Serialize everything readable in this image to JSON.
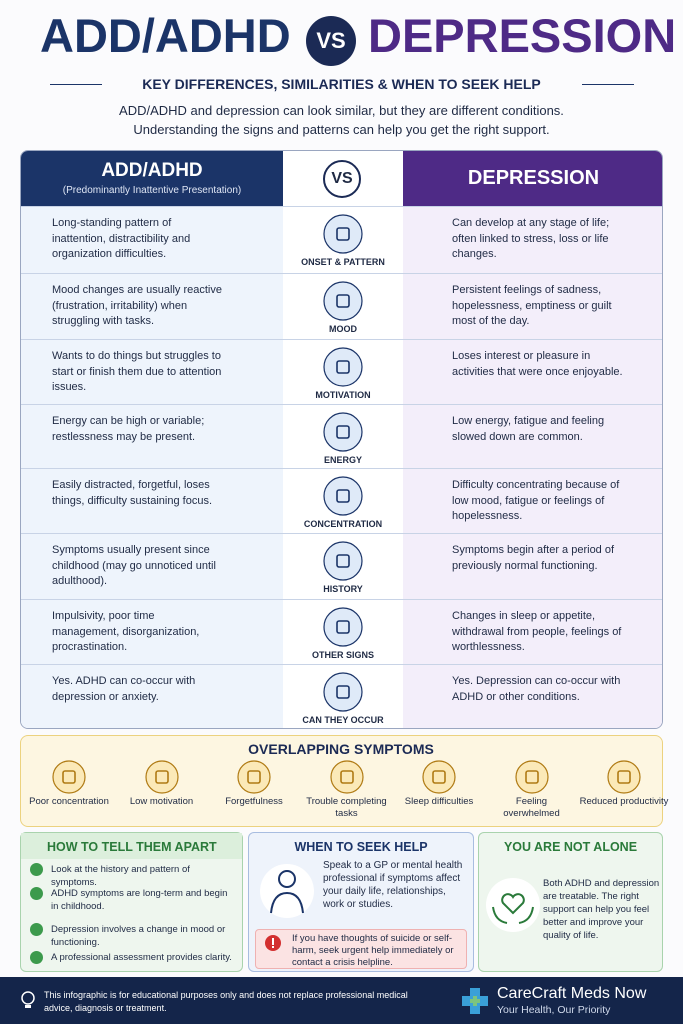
{
  "header": {
    "title_left": "ADD/ADHD",
    "vs": "VS",
    "title_right": "DEPRESSION",
    "subtitle": "KEY DIFFERENCES, SIMILARITIES & WHEN TO SEEK HELP",
    "intro": [
      "ADD/ADHD and depression can look similar, but they are different conditions.",
      "Understanding the signs and patterns can help you get the right support."
    ]
  },
  "table": {
    "left_title": "ADD/ADHD",
    "left_subtitle": "(Predominantly Inattentive Presentation)",
    "middle": "VS",
    "right_title": "DEPRESSION",
    "rows": [
      {
        "topic": "ONSET & PATTERN",
        "adhd": "Long-standing pattern of inattention, distractibility and organization difficulties.",
        "depression": "Can develop at any stage of life; often linked to stress, loss or life changes."
      },
      {
        "topic": "MOOD",
        "adhd": "Mood changes are usually reactive (frustration, irritability) when struggling with tasks.",
        "depression": "Persistent feelings of sadness, hopelessness, emptiness or guilt most of the day."
      },
      {
        "topic": "MOTIVATION",
        "adhd": "Wants to do things but struggles to start or finish them due to attention issues.",
        "depression": "Loses interest or pleasure in activities that were once enjoyable."
      },
      {
        "topic": "ENERGY",
        "adhd": "Energy can be high or variable; restlessness may be present.",
        "depression": "Low energy, fatigue and feeling slowed down are common."
      },
      {
        "topic": "CONCENTRATION",
        "adhd": "Easily distracted, forgetful, loses things, difficulty sustaining focus.",
        "depression": "Difficulty concentrating because of low mood, fatigue or feelings of hopelessness."
      },
      {
        "topic": "HISTORY",
        "adhd": "Symptoms usually present since childhood (may go unnoticed until adulthood).",
        "depression": "Symptoms begin after a period of previously normal functioning."
      },
      {
        "topic": "OTHER SIGNS",
        "adhd": "Impulsivity, poor time management, disorganization, procrastination.",
        "depression": "Changes in sleep or appetite, withdrawal from people, feelings of worthlessness."
      },
      {
        "topic": "CAN THEY OCCUR TOGETHER?",
        "adhd": "Yes. ADHD can co-occur with depression or anxiety.",
        "depression": "Yes. Depression can co-occur with ADHD or other conditions."
      }
    ]
  },
  "overlap": {
    "title": "OVERLAPPING SYMPTOMS",
    "items": [
      "Poor concentration",
      "Low motivation",
      "Forgetfulness",
      "Trouble completing tasks",
      "Sleep difficulties",
      "Feeling overwhelmed",
      "Reduced productivity"
    ]
  },
  "tell_apart": {
    "title": "HOW TO TELL THEM APART",
    "items": [
      "Look at the history and pattern of symptoms.",
      "ADHD symptoms are long-term and begin in childhood.",
      "Depression involves a change in mood or functioning.",
      "A professional assessment provides clarity."
    ]
  },
  "seek_help": {
    "title": "WHEN TO SEEK HELP",
    "text": "Speak to a GP or mental health professional if symptoms affect your daily life, relationships, work or studies.",
    "warning": "If you have thoughts of suicide or self-harm, seek urgent help immediately or contact a crisis helpline."
  },
  "not_alone": {
    "title": "YOU ARE NOT ALONE",
    "text": "Both ADHD and depression are treatable. The right support can help you feel better and improve your quality of life."
  },
  "footer": {
    "disclaimer": "This infographic is for educational purposes only and does not replace professional medical advice, diagnosis or treatment.",
    "brand": "CareCraft Meds Now",
    "tagline": "Your Health, Our Priority"
  }
}
